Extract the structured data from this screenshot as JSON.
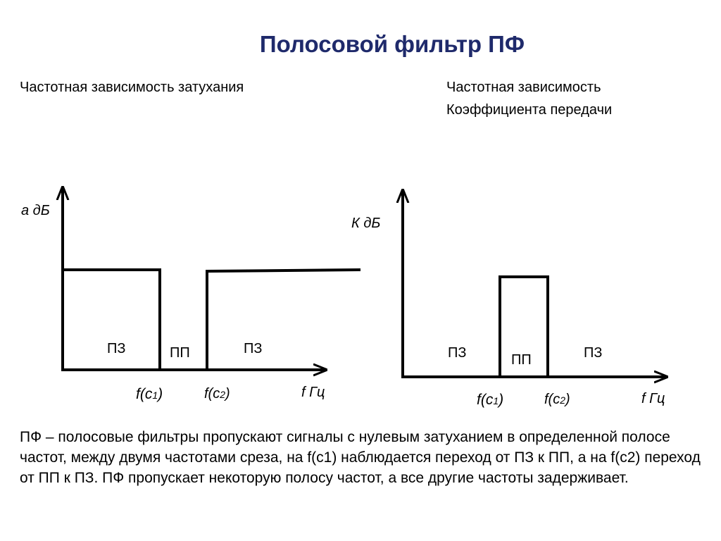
{
  "title": "Полосовой фильтр ПФ",
  "left_heading": "Частотная зависимость затухания",
  "right_heading_line1": "Частотная зависимость",
  "right_heading_line2": "Коэффициента передачи",
  "left_chart": {
    "y_axis_label": "а дБ",
    "x_axis_label": "f Гц",
    "f1_prefix": "f(c",
    "f1_index": "1",
    "f2_prefix": "f(c",
    "f2_index": "2",
    "close_paren": ")",
    "region_stop_left": "ПЗ",
    "region_pass": "ПП",
    "region_stop_right": "ПЗ"
  },
  "right_chart": {
    "y_axis_label": "К дБ",
    "x_axis_label": "f Гц",
    "f1_prefix": "f(c",
    "f1_index": "1",
    "f2_prefix": "f(c",
    "f2_index": "2",
    "close_paren": ")",
    "region_stop_left": "ПЗ",
    "region_pass": "ПП",
    "region_stop_right": "ПЗ"
  },
  "description": "ПФ – полосовые фильтры пропускают сигналы с нулевым затуханием в определенной полосе частот, между двумя частотами среза, на f(c1) наблюдается переход от ПЗ к ПП, а на f(c2) переход от ПП к ПЗ. ПФ пропускает некоторую полосу частот, а все другие частоты задерживает.",
  "colors": {
    "title": "#1f2a6b",
    "lines": "#000000"
  }
}
